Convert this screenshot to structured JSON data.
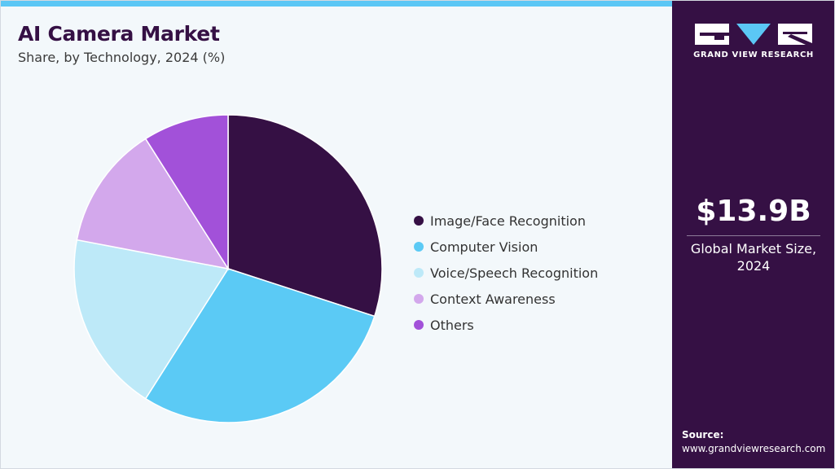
{
  "header": {
    "title": "AI Camera Market",
    "subtitle": "Share, by Technology, 2024 (%)"
  },
  "brand": {
    "name": "GRAND VIEW RESEARCH"
  },
  "market": {
    "value": "$13.9B",
    "caption_line1": "Global Market Size,",
    "caption_line2": "2024"
  },
  "source": {
    "label": "Source:",
    "url": "www.grandviewresearch.com"
  },
  "colors": {
    "accent": "#5bc7f5",
    "panel": "#351044",
    "background": "#f3f8fb"
  },
  "chart_data": {
    "type": "pie",
    "title": "AI Camera Market",
    "subtitle": "Share, by Technology, 2024 (%)",
    "legend_position": "right",
    "slices": [
      {
        "label": "Image/Face Recognition",
        "value": 30,
        "color": "#351044"
      },
      {
        "label": "Computer Vision",
        "value": 29,
        "color": "#5bcaf5"
      },
      {
        "label": "Voice/Speech Recognition",
        "value": 19,
        "color": "#bde9f8"
      },
      {
        "label": "Context Awareness",
        "value": 13,
        "color": "#d3a8ec"
      },
      {
        "label": "Others",
        "value": 9,
        "color": "#a251d9"
      }
    ]
  }
}
